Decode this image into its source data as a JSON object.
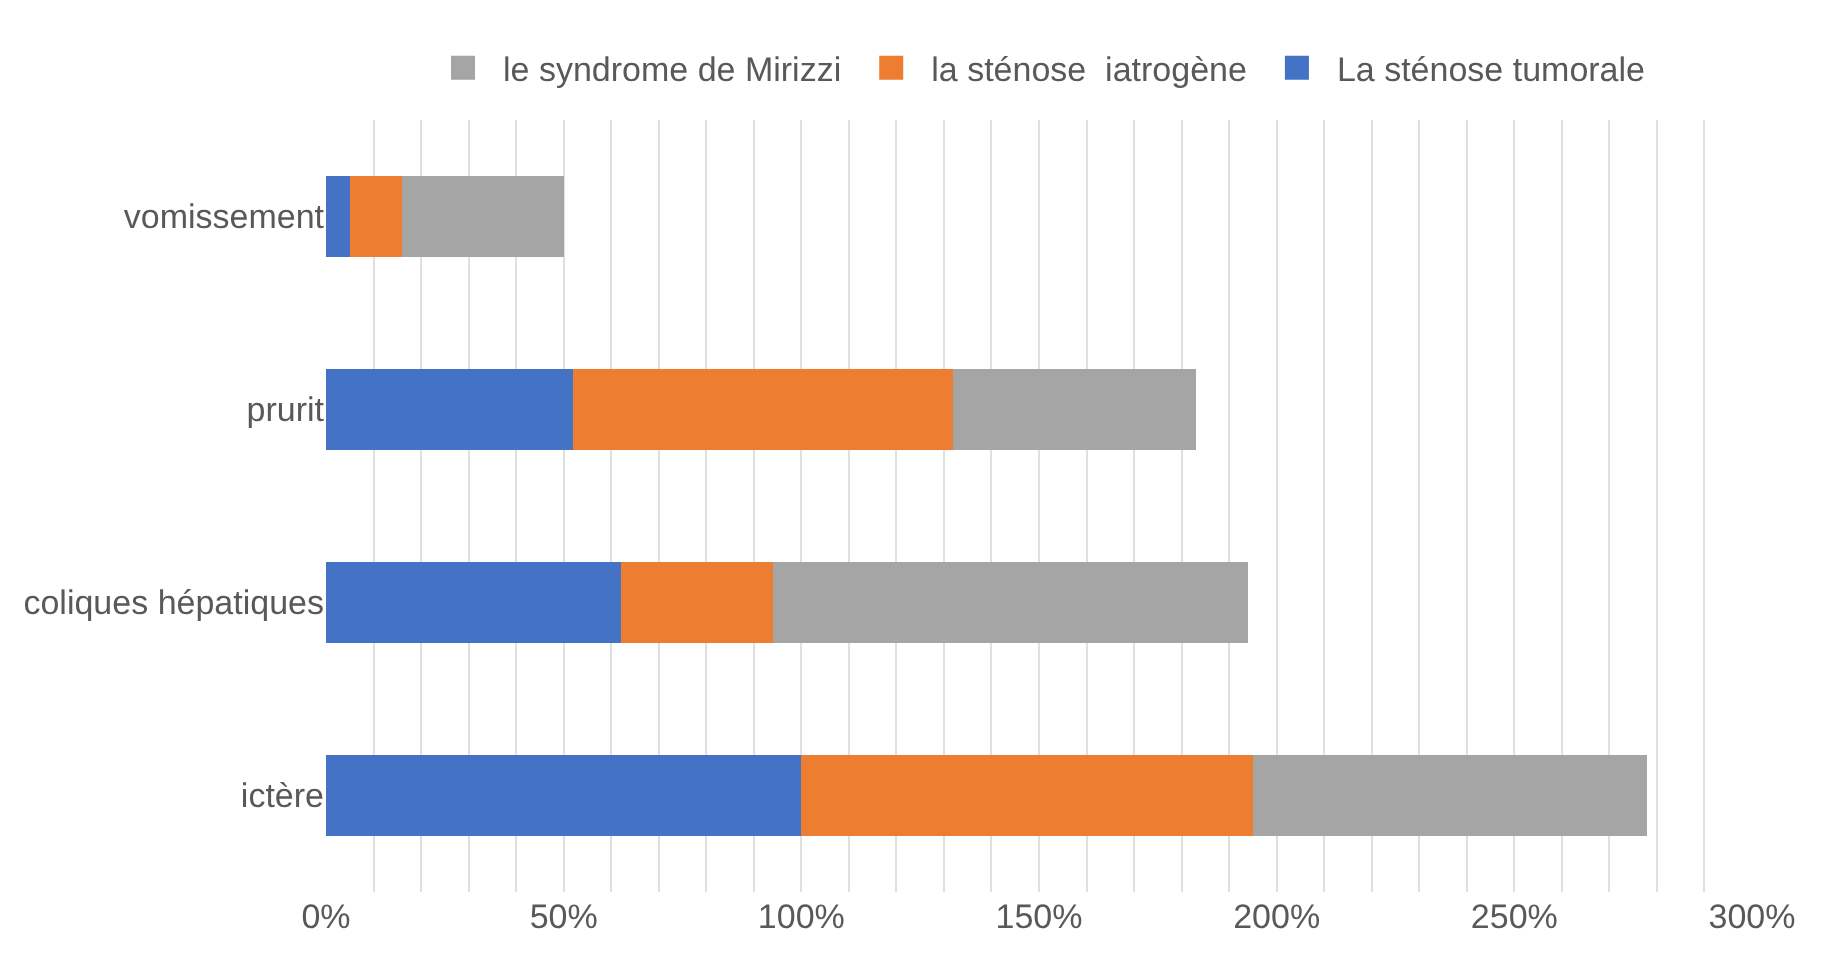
{
  "chart_data": {
    "type": "bar",
    "orientation": "horizontal",
    "stacked": true,
    "categories": [
      "vomissement",
      "prurit",
      "coliques hépatiques",
      "ictère"
    ],
    "series": [
      {
        "name": "La sténose tumorale",
        "color": "#4472c4",
        "values": [
          5,
          52,
          62,
          100
        ]
      },
      {
        "name": "la sténose  iatrogène",
        "color": "#ed7d31",
        "values": [
          11,
          80,
          32,
          95
        ]
      },
      {
        "name": "le syndrome de Mirizzi",
        "color": "#a5a5a5",
        "values": [
          34,
          51,
          100,
          83
        ]
      }
    ],
    "xlim": [
      0,
      300
    ],
    "xticks": [
      {
        "value": 0,
        "label": "0%"
      },
      {
        "value": 10,
        "label": null
      },
      {
        "value": 20,
        "label": null
      },
      {
        "value": 30,
        "label": null
      },
      {
        "value": 40,
        "label": null
      },
      {
        "value": 50,
        "label": "50%"
      },
      {
        "value": 60,
        "label": null
      },
      {
        "value": 70,
        "label": null
      },
      {
        "value": 80,
        "label": null
      },
      {
        "value": 90,
        "label": null
      },
      {
        "value": 100,
        "label": "100%"
      },
      {
        "value": 110,
        "label": null
      },
      {
        "value": 120,
        "label": null
      },
      {
        "value": 130,
        "label": null
      },
      {
        "value": 140,
        "label": null
      },
      {
        "value": 150,
        "label": "150%"
      },
      {
        "value": 160,
        "label": null
      },
      {
        "value": 170,
        "label": null
      },
      {
        "value": 180,
        "label": null
      },
      {
        "value": 190,
        "label": null
      },
      {
        "value": 200,
        "label": "200%"
      },
      {
        "value": 210,
        "label": null
      },
      {
        "value": 220,
        "label": null
      },
      {
        "value": 230,
        "label": null
      },
      {
        "value": 240,
        "label": null
      },
      {
        "value": 250,
        "label": "250%"
      },
      {
        "value": 260,
        "label": null
      },
      {
        "value": 270,
        "label": null
      },
      {
        "value": 280,
        "label": null
      },
      {
        "value": 290,
        "label": null
      },
      {
        "value": 300,
        "label": "300%"
      }
    ],
    "grid": "x",
    "legend": "top"
  }
}
